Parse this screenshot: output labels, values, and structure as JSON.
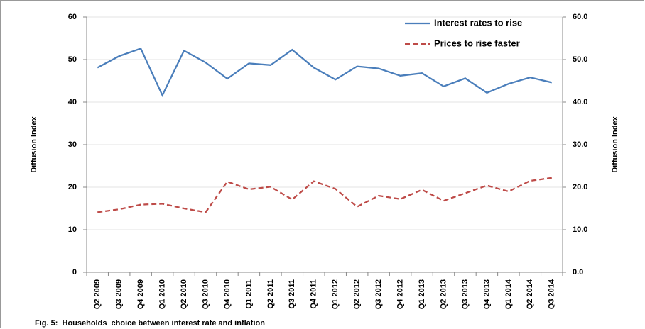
{
  "chart_data": {
    "type": "line",
    "caption": "Fig. 5:  Households  choice between interest rate and inflation",
    "y_label": "Diffusion Index",
    "y2_label": "Diffusion Index",
    "categories": [
      "Q2 2009",
      "Q3 2009",
      "Q4 2009",
      "Q1 2010",
      "Q2 2010",
      "Q3 2010",
      "Q4 2010",
      "Q1 2011",
      "Q2 2011",
      "Q3 2011",
      "Q4 2011",
      "Q1 2012",
      "Q2 2012",
      "Q3 2012",
      "Q4 2012",
      "Q1 2013",
      "Q2 2013",
      "Q3 2013",
      "Q4 2013",
      "Q1 2014",
      "Q2 2014",
      "Q3 2014"
    ],
    "series": [
      {
        "name": "Interest rates to rise",
        "color": "#4a7ebb",
        "line_style": "solid",
        "values": [
          48.1,
          50.8,
          52.6,
          41.6,
          52.1,
          49.3,
          45.5,
          49.1,
          48.7,
          52.3,
          48.1,
          45.3,
          48.4,
          47.9,
          46.2,
          46.8,
          43.7,
          45.6,
          42.2,
          44.3,
          45.8,
          44.6
        ]
      },
      {
        "name": "Prices to rise faster",
        "color": "#be4b48",
        "line_style": "dashed",
        "values": [
          14.1,
          14.8,
          15.9,
          16.1,
          15.0,
          14.1,
          21.3,
          19.5,
          20.1,
          17.1,
          21.4,
          19.6,
          15.4,
          18.0,
          17.2,
          19.4,
          16.8,
          18.6,
          20.4,
          19.0,
          21.5,
          22.2
        ]
      }
    ],
    "ylim": [
      0,
      60
    ],
    "yticks": [
      0,
      10,
      20,
      30,
      40,
      50,
      60
    ],
    "y2lim": [
      0,
      60
    ],
    "y2ticks": [
      {
        "value": 0,
        "label": "0.0"
      },
      {
        "value": 10,
        "label": "10.0"
      },
      {
        "value": 20,
        "label": "20.0"
      },
      {
        "value": 30,
        "label": "30.0"
      },
      {
        "value": 40,
        "label": "40.0"
      },
      {
        "value": 50,
        "label": "50.0"
      },
      {
        "value": 60,
        "label": "60.0"
      }
    ],
    "grid": true,
    "legend": "top-right"
  }
}
